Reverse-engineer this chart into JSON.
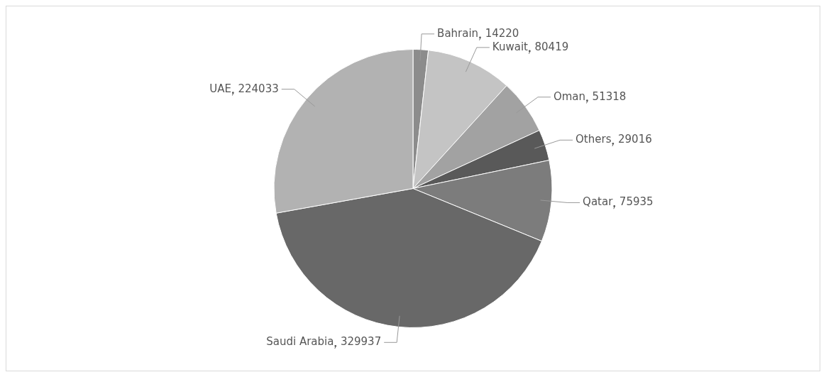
{
  "chart_data": {
    "type": "pie",
    "categories": [
      "Bahrain",
      "Kuwait",
      "Oman",
      "Others",
      "Qatar",
      "Saudi Arabia",
      "UAE"
    ],
    "values": [
      14220,
      80419,
      51318,
      29016,
      75935,
      329937,
      224033
    ],
    "colors": [
      "#8c8c8c",
      "#c4c4c4",
      "#a2a2a2",
      "#595959",
      "#7c7c7c",
      "#686868",
      "#b2b2b2"
    ],
    "data_labels": true
  }
}
